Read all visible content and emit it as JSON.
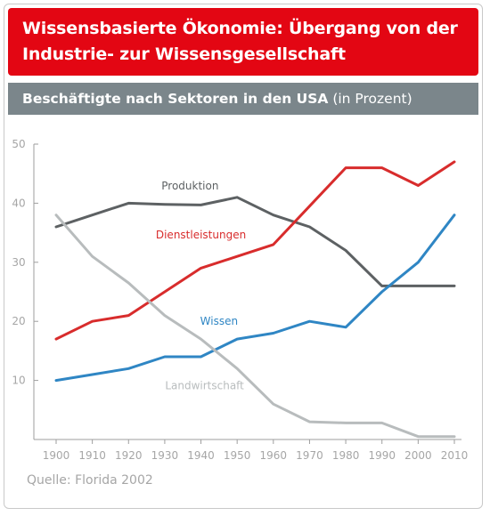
{
  "title_lines": [
    "Wissensbasierte Ökonomie: Übergang von der",
    "Industrie- zur Wissensgesellschaft"
  ],
  "subtitle": {
    "main": "Beschäftigte nach Sektoren in den USA",
    "unit": "(in Prozent)"
  },
  "source": "Quelle: Florida 2002",
  "colors": {
    "title_bg": "#e30613",
    "subtitle_bg": "#7b868b",
    "axis": "#9e9e9e",
    "tick_text": "#a6a6a6"
  },
  "chart_data": {
    "type": "line",
    "title": "Beschäftigte nach Sektoren in den USA",
    "unit": "(in Prozent)",
    "x": [
      1900,
      1910,
      1920,
      1930,
      1940,
      1950,
      1960,
      1970,
      1980,
      1990,
      2000,
      2010
    ],
    "xlim": [
      1900,
      2010
    ],
    "ylim": [
      0,
      50
    ],
    "x_ticks": [
      "1900",
      "1910",
      "1920",
      "1930",
      "1940",
      "1950",
      "1960",
      "1970",
      "1980",
      "1990",
      "2000",
      "2010"
    ],
    "y_ticks": [
      "10",
      "20",
      "30",
      "40",
      "50"
    ],
    "y_tick_values": [
      10,
      20,
      30,
      40,
      50
    ],
    "grid": false,
    "series": [
      {
        "name": "Produktion",
        "color": "#5d6163",
        "values": [
          36,
          38,
          40,
          39.8,
          39.7,
          41,
          38,
          36,
          32,
          26,
          26,
          26
        ],
        "label_at": [
          1937,
          42.3
        ]
      },
      {
        "name": "Dienstleistungen",
        "color": "#d82c2c",
        "values": [
          17,
          20,
          21,
          25,
          29,
          31,
          33,
          39.5,
          46,
          46,
          43,
          47
        ],
        "label_at": [
          1940,
          34
        ]
      },
      {
        "name": "Wissen",
        "color": "#2f86c4",
        "values": [
          10,
          11,
          12,
          14,
          14,
          17,
          18,
          20,
          19,
          25,
          30,
          38
        ],
        "label_at": [
          1945,
          19.4
        ]
      },
      {
        "name": "Landwirtschaft",
        "color": "#b8bcbd",
        "values": [
          38,
          31,
          26.5,
          21,
          17,
          12,
          6,
          3,
          2.8,
          2.8,
          0.5,
          0.5
        ],
        "label_at": [
          1941,
          8.5
        ]
      }
    ]
  }
}
